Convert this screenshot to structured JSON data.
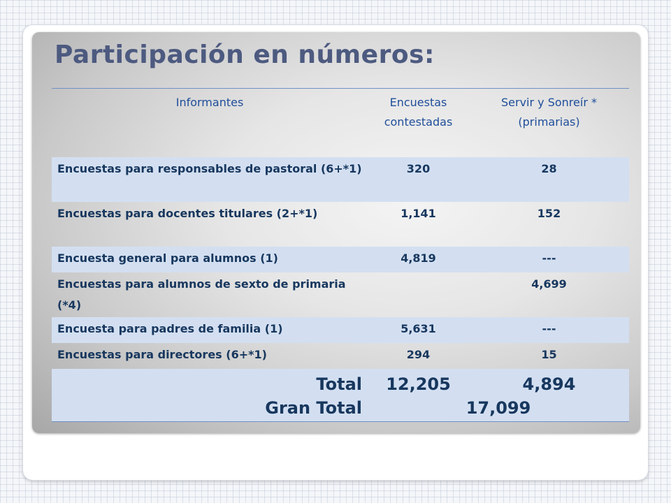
{
  "slide": {
    "title": "Participación en números:"
  },
  "table": {
    "headers": [
      "Informantes",
      "Encuestas contestadas",
      "Servir y Sonreír * (primarias)"
    ],
    "rows": [
      {
        "label": "Encuestas para responsables de pastoral (6+*1)",
        "encuestas": "320",
        "servir": "28"
      },
      {
        "label": "Encuestas para docentes titulares (2+*1)",
        "encuestas": "1,141",
        "servir": "152"
      },
      {
        "label": "Encuesta general para alumnos (1)",
        "encuestas": "4,819",
        "servir": "---"
      },
      {
        "label": "Encuestas para alumnos de sexto de primaria (*4)",
        "encuestas": "",
        "servir": "4,699"
      },
      {
        "label": "Encuesta para padres de familia (1)",
        "encuestas": "5,631",
        "servir": "---"
      },
      {
        "label": "Encuestas para directores (6+*1)",
        "encuestas": "294",
        "servir": "15"
      }
    ],
    "total": {
      "label": "Total",
      "encuestas": "12,205",
      "servir": "4,894"
    },
    "gran_total": {
      "label": "Gran Total",
      "value": "17,099"
    }
  },
  "colors": {
    "title": "#4d5a80",
    "table_text": "#17375e",
    "header_text": "#1f4e9a",
    "row_band": "#d3dff1"
  }
}
